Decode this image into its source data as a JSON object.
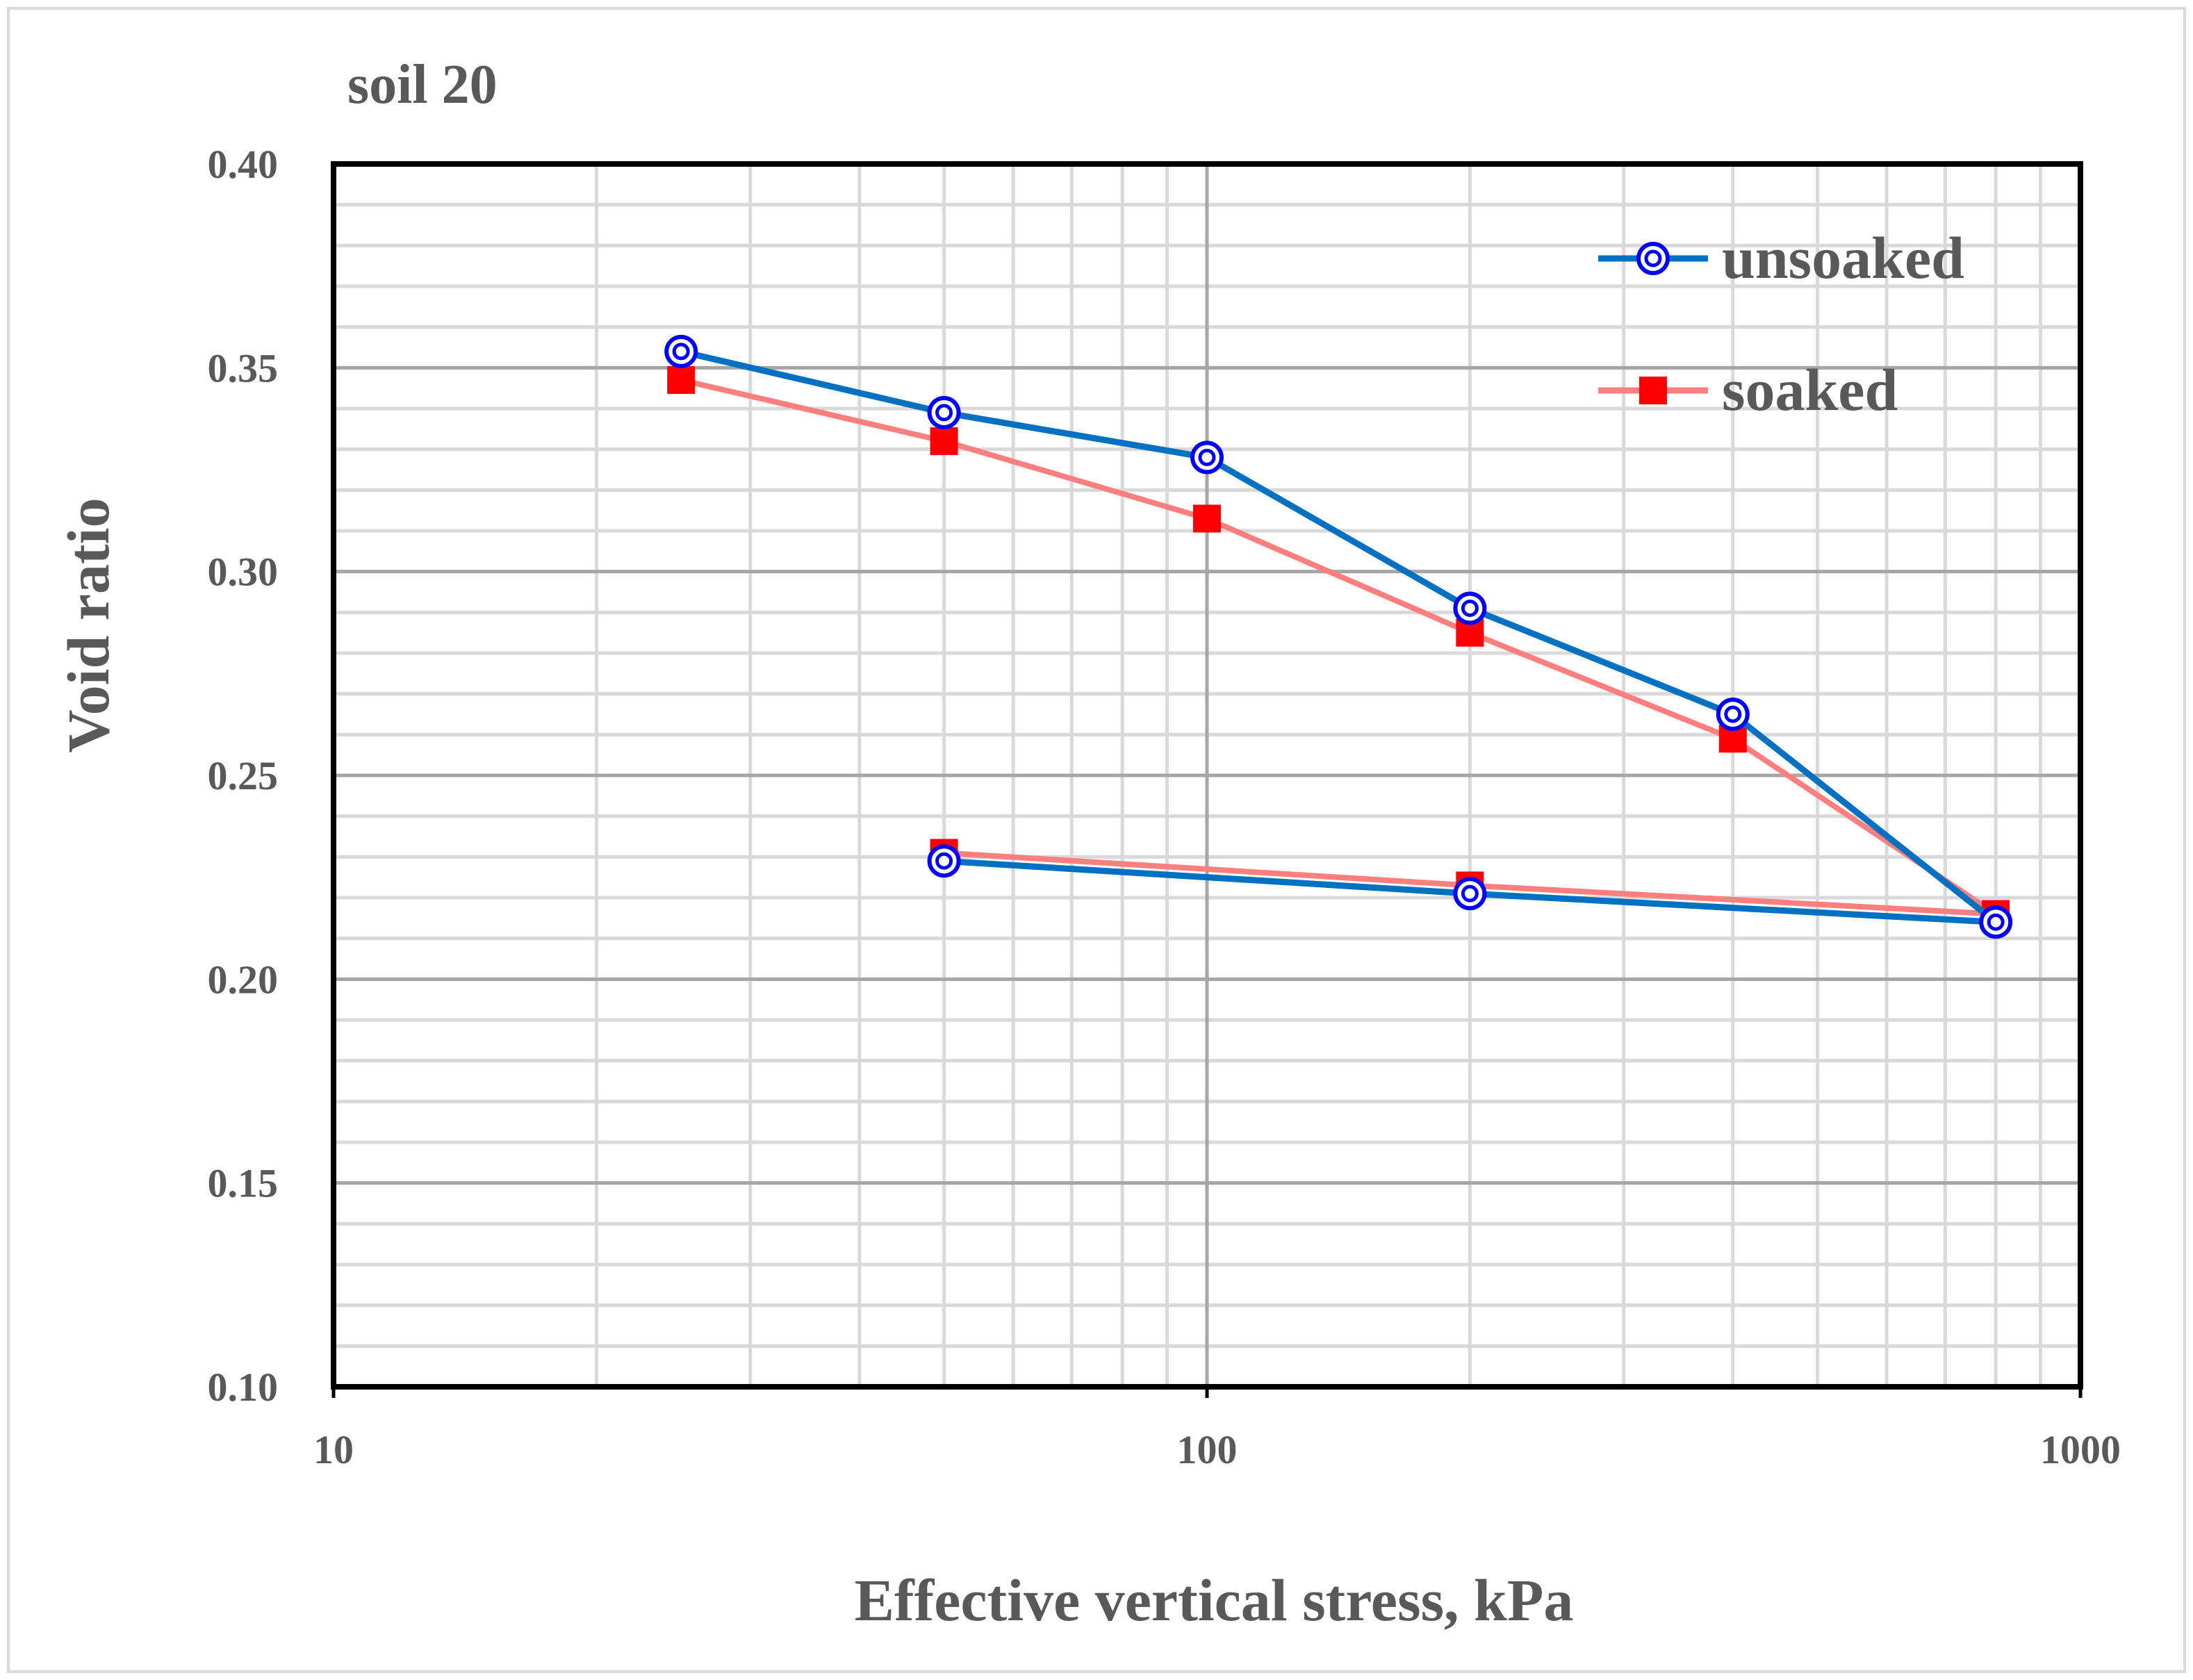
{
  "chart_data": {
    "type": "line",
    "title": "soil 20",
    "xlabel": "Effective vertical stress, kPa",
    "ylabel": "Void ratio",
    "xscale": "log",
    "xlim": [
      10,
      1000
    ],
    "ylim": [
      0.1,
      0.4
    ],
    "grid": true,
    "legend_position": "top-right",
    "x_ticks": [
      "10",
      "100",
      "1000"
    ],
    "y_ticks": [
      "0.10",
      "0.15",
      "0.20",
      "0.25",
      "0.30",
      "0.35",
      "0.40"
    ],
    "series": [
      {
        "name": "unsoaked",
        "color": "#0070C0",
        "marker": "double-circle",
        "marker_color": "#0000FF",
        "points": [
          {
            "x": 25,
            "y": 0.354
          },
          {
            "x": 50,
            "y": 0.339
          },
          {
            "x": 100,
            "y": 0.328
          },
          {
            "x": 200,
            "y": 0.291
          },
          {
            "x": 400,
            "y": 0.265
          },
          {
            "x": 800,
            "y": 0.214
          },
          {
            "x": 200,
            "y": 0.221
          },
          {
            "x": 50,
            "y": 0.229
          }
        ]
      },
      {
        "name": "soaked",
        "color": "#FF7F7F",
        "marker": "square",
        "marker_color": "#FF0000",
        "points": [
          {
            "x": 25,
            "y": 0.347
          },
          {
            "x": 50,
            "y": 0.332
          },
          {
            "x": 100,
            "y": 0.313
          },
          {
            "x": 200,
            "y": 0.285
          },
          {
            "x": 400,
            "y": 0.259
          },
          {
            "x": 800,
            "y": 0.216
          },
          {
            "x": 200,
            "y": 0.223
          },
          {
            "x": 50,
            "y": 0.231
          }
        ]
      }
    ]
  }
}
